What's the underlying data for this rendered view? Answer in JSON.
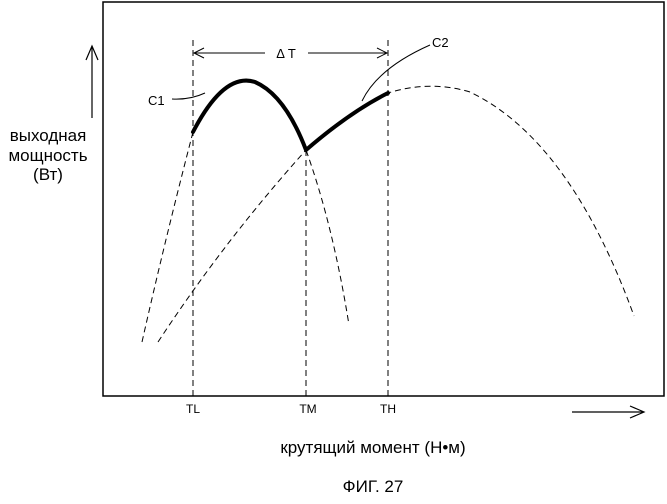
{
  "figure": {
    "caption": "ФИГ. 27",
    "y_axis_label": [
      "выходная",
      "мощность",
      "(Вт)"
    ],
    "x_axis_label": "крутящий момент (Н•м)",
    "ticks": {
      "tl": "TL",
      "tm": "TM",
      "th": "TH"
    },
    "curve_labels": {
      "c1": "C1",
      "c2": "C2"
    },
    "interval_label": "Δ T"
  }
}
